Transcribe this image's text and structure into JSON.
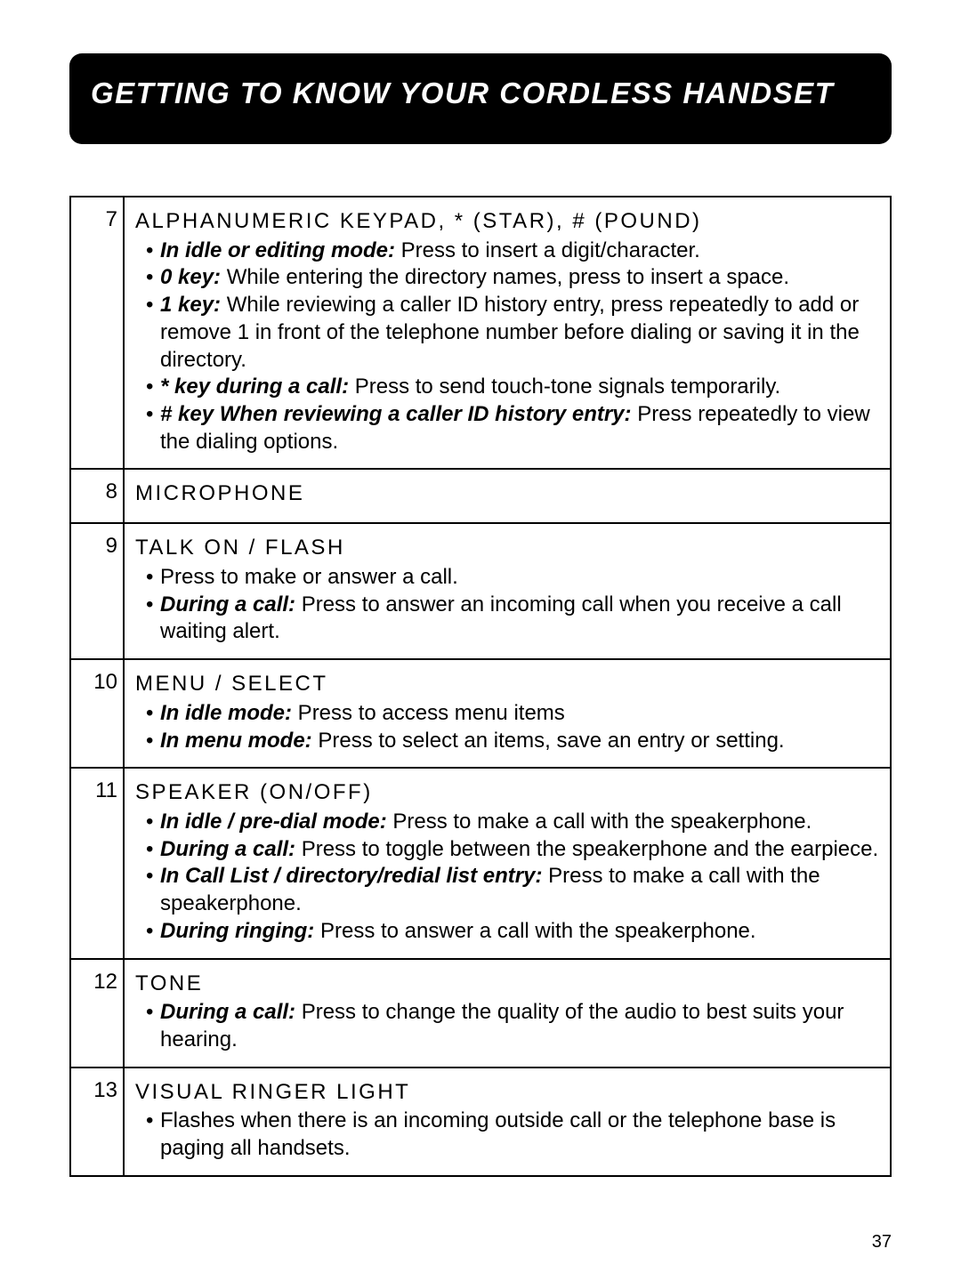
{
  "header": {
    "title": "GETTING TO KNOW YOUR CORDLESS HANDSET"
  },
  "page_number": "37",
  "rows": [
    {
      "num": "7",
      "heading": "ALPHANUMERIC KEYPAD, * (STAR), # (POUND)",
      "bullets": [
        {
          "label": "In idle or editing mode:",
          "text": " Press to insert a digit/character."
        },
        {
          "label": "0 key:",
          "text": " While entering the directory names, press to insert a space."
        },
        {
          "label": "1 key:",
          "text": " While reviewing a caller ID history entry, press repeatedly to add or remove 1 in front of the telephone number before dialing or saving it in the directory."
        },
        {
          "label": "* key during a call:",
          "text": " Press to send touch-tone signals temporarily."
        },
        {
          "label": "# key When reviewing a caller ID history entry:",
          "text": " Press repeatedly to view the dialing options."
        }
      ]
    },
    {
      "num": "8",
      "heading": "MICROPHONE",
      "bullets": []
    },
    {
      "num": "9",
      "heading": "TALK ON / FLASH",
      "bullets": [
        {
          "label": "",
          "text": "Press to make or answer a call."
        },
        {
          "label": "During a call:",
          "text": " Press to answer an incoming call when you receive a call waiting alert."
        }
      ]
    },
    {
      "num": "10",
      "heading": "MENU / SELECT",
      "bullets": [
        {
          "label": "In idle mode:",
          "text": " Press to access menu items"
        },
        {
          "label": "In menu mode:",
          "text": " Press to select an items, save an entry or setting."
        }
      ]
    },
    {
      "num": "11",
      "heading": "SPEAKER (ON/OFF)",
      "bullets": [
        {
          "label": "In idle / pre-dial mode:",
          "text": " Press to make a call with the speakerphone."
        },
        {
          "label": "During a call:",
          "text": " Press to toggle between the speakerphone and the earpiece."
        },
        {
          "label": "In Call List / directory/redial list entry:",
          "text": " Press to make a call with the speakerphone."
        },
        {
          "label": "During ringing:",
          "text": " Press to answer a call with the speakerphone."
        }
      ]
    },
    {
      "num": "12",
      "heading": "TONE",
      "bullets": [
        {
          "label": "During a call:",
          "text": " Press to change the quality of the audio to best suits your hearing."
        }
      ]
    },
    {
      "num": "13",
      "heading": "VISUAL RINGER LIGHT",
      "bullets": [
        {
          "label": "",
          "text": "Flashes when there is an incoming outside call or the telephone base is paging all handsets."
        }
      ]
    }
  ]
}
